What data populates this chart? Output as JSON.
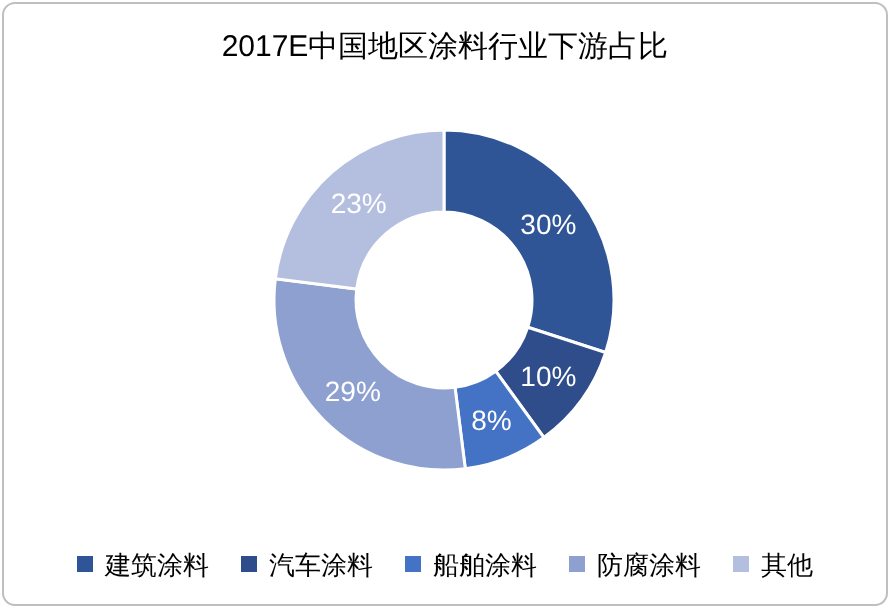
{
  "chart_data": {
    "type": "donut",
    "title": "2017E中国地区涂料行业下游占比",
    "categories": [
      "建筑涂料",
      "汽车涂料",
      "船舶涂料",
      "防腐涂料",
      "其他"
    ],
    "values": [
      30,
      10,
      8,
      29,
      23
    ],
    "value_labels": [
      "30%",
      "10%",
      "8%",
      "29%",
      "23%"
    ],
    "colors": [
      "#2f5597",
      "#2e4d8a",
      "#4472c4",
      "#8ea0d0",
      "#b4bfe0"
    ],
    "legend": "bottom"
  }
}
